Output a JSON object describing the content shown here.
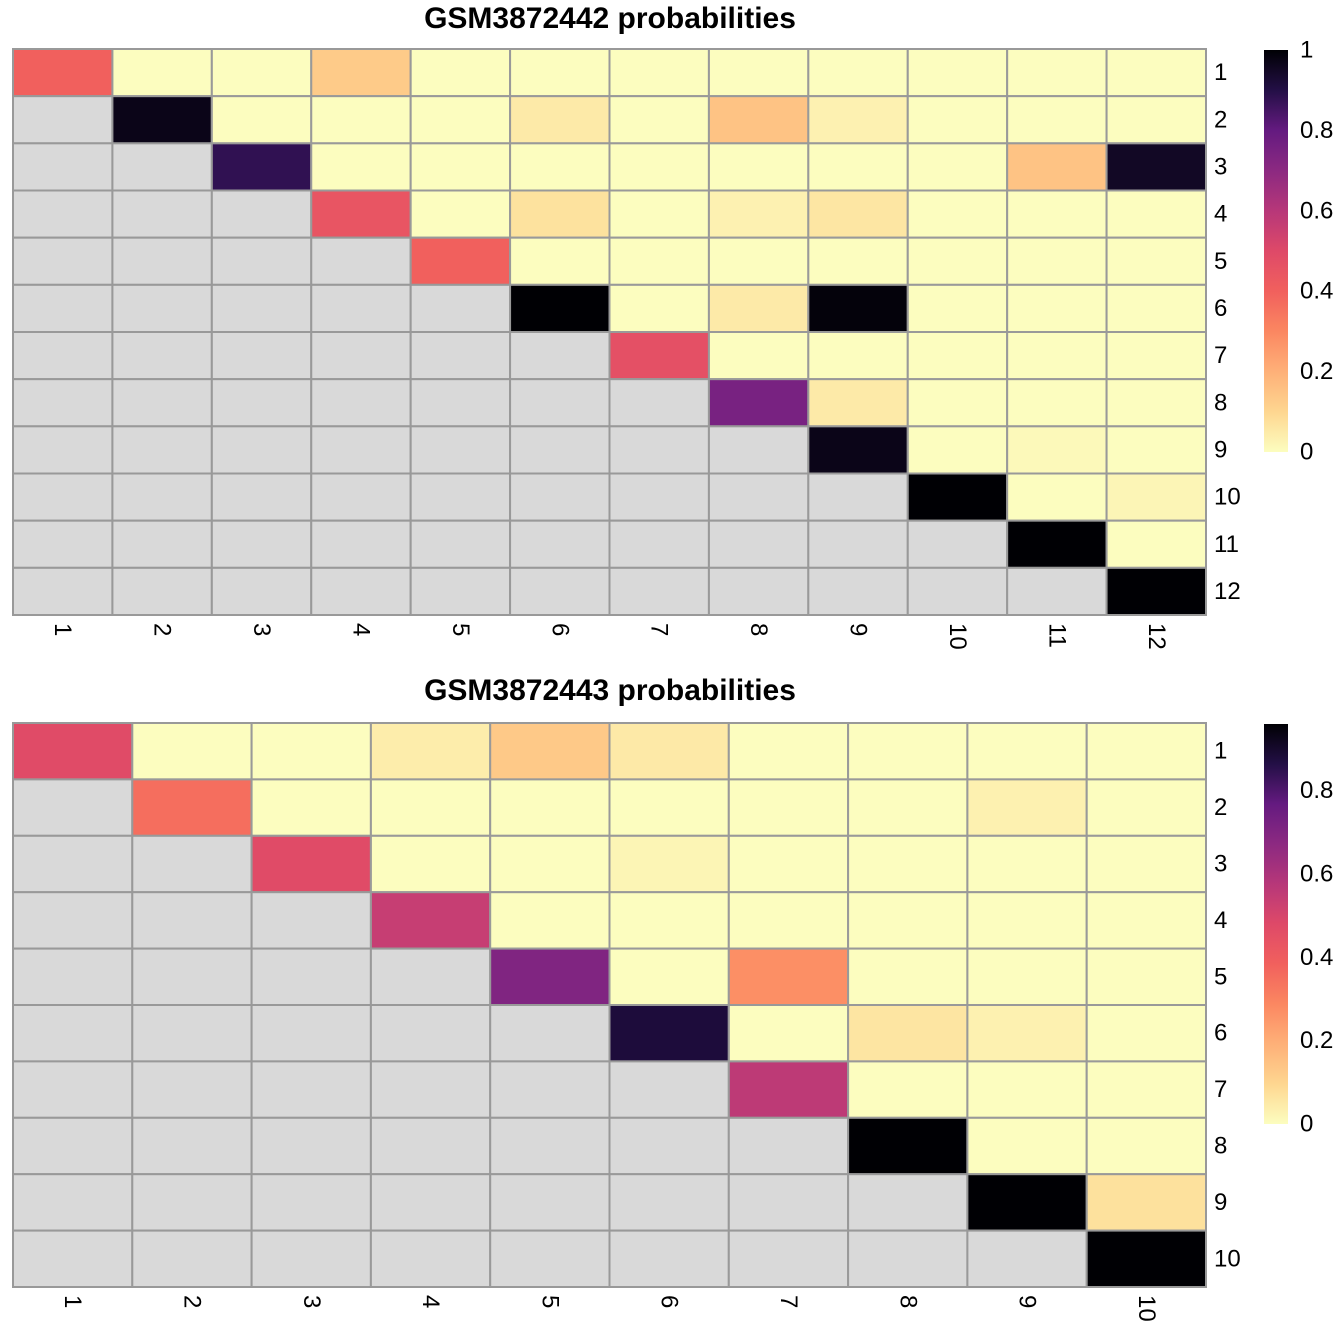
{
  "chart_data": [
    {
      "type": "heatmap",
      "title": "GSM3872442 probabilities",
      "rows": [
        "1",
        "2",
        "3",
        "4",
        "5",
        "6",
        "7",
        "8",
        "9",
        "10",
        "11",
        "12"
      ],
      "cols": [
        "1",
        "2",
        "3",
        "4",
        "5",
        "6",
        "7",
        "8",
        "9",
        "10",
        "11",
        "12"
      ],
      "layout": "upper-triangular (lower triangle shown in grey = no value)",
      "values": [
        [
          0.4,
          0.0,
          0.0,
          0.13,
          0.0,
          0.0,
          0.0,
          0.0,
          0.0,
          0.0,
          0.0,
          0.0
        ],
        [
          null,
          0.97,
          0.0,
          0.0,
          0.0,
          0.05,
          0.0,
          0.15,
          0.03,
          0.0,
          0.0,
          0.0
        ],
        [
          null,
          null,
          0.88,
          0.0,
          0.0,
          0.0,
          0.0,
          0.0,
          0.0,
          0.0,
          0.15,
          0.95
        ],
        [
          null,
          null,
          null,
          0.45,
          0.0,
          0.07,
          0.0,
          0.03,
          0.06,
          0.0,
          0.0,
          0.0
        ],
        [
          null,
          null,
          null,
          null,
          0.4,
          0.0,
          0.0,
          0.0,
          0.0,
          0.0,
          0.0,
          0.0
        ],
        [
          null,
          null,
          null,
          null,
          null,
          1.0,
          0.0,
          0.05,
          0.99,
          0.0,
          0.0,
          0.0
        ],
        [
          null,
          null,
          null,
          null,
          null,
          null,
          0.47,
          0.0,
          0.0,
          0.0,
          0.0,
          0.0
        ],
        [
          null,
          null,
          null,
          null,
          null,
          null,
          null,
          0.75,
          0.05,
          0.0,
          0.0,
          0.0
        ],
        [
          null,
          null,
          null,
          null,
          null,
          null,
          null,
          null,
          0.97,
          0.0,
          0.01,
          0.0
        ],
        [
          null,
          null,
          null,
          null,
          null,
          null,
          null,
          null,
          null,
          1.0,
          0.0,
          0.02
        ],
        [
          null,
          null,
          null,
          null,
          null,
          null,
          null,
          null,
          null,
          null,
          1.0,
          0.0
        ],
        [
          null,
          null,
          null,
          null,
          null,
          null,
          null,
          null,
          null,
          null,
          null,
          1.0
        ]
      ],
      "colorbar": {
        "range": [
          0,
          1
        ],
        "ticks": [
          "0",
          "0.2",
          "0.4",
          "0.6",
          "0.8",
          "1"
        ]
      },
      "colormap": "magma (reversed)"
    },
    {
      "type": "heatmap",
      "title": "GSM3872443 probabilities",
      "rows": [
        "1",
        "2",
        "3",
        "4",
        "5",
        "6",
        "7",
        "8",
        "9",
        "10"
      ],
      "cols": [
        "1",
        "2",
        "3",
        "4",
        "5",
        "6",
        "7",
        "8",
        "9",
        "10"
      ],
      "layout": "upper-triangular (lower triangle shown in grey = no value)",
      "values": [
        [
          0.47,
          0.0,
          0.0,
          0.04,
          0.13,
          0.05,
          0.0,
          0.0,
          0.0,
          0.0
        ],
        [
          null,
          0.35,
          0.0,
          0.0,
          0.0,
          0.0,
          0.0,
          0.0,
          0.03,
          0.0
        ],
        [
          null,
          null,
          0.47,
          0.0,
          0.0,
          0.02,
          0.0,
          0.0,
          0.0,
          0.0
        ],
        [
          null,
          null,
          null,
          0.54,
          0.0,
          0.0,
          0.0,
          0.0,
          0.0,
          0.0
        ],
        [
          null,
          null,
          null,
          null,
          0.7,
          0.0,
          0.27,
          0.0,
          0.0,
          0.0
        ],
        [
          null,
          null,
          null,
          null,
          null,
          0.88,
          0.0,
          0.06,
          0.03,
          0.0
        ],
        [
          null,
          null,
          null,
          null,
          null,
          null,
          0.56,
          0.0,
          0.0,
          0.0
        ],
        [
          null,
          null,
          null,
          null,
          null,
          null,
          null,
          0.97,
          0.0,
          0.0
        ],
        [
          null,
          null,
          null,
          null,
          null,
          null,
          null,
          null,
          0.96,
          0.07
        ],
        [
          null,
          null,
          null,
          null,
          null,
          null,
          null,
          null,
          null,
          0.96
        ]
      ],
      "colorbar": {
        "range": [
          0,
          0.96
        ],
        "ticks": [
          "0",
          "0.2",
          "0.4",
          "0.6",
          "0.8"
        ]
      },
      "colormap": "magma (reversed)"
    }
  ],
  "colors": {
    "na_cell": "#d9d9d9",
    "cell_border": "#999999"
  }
}
